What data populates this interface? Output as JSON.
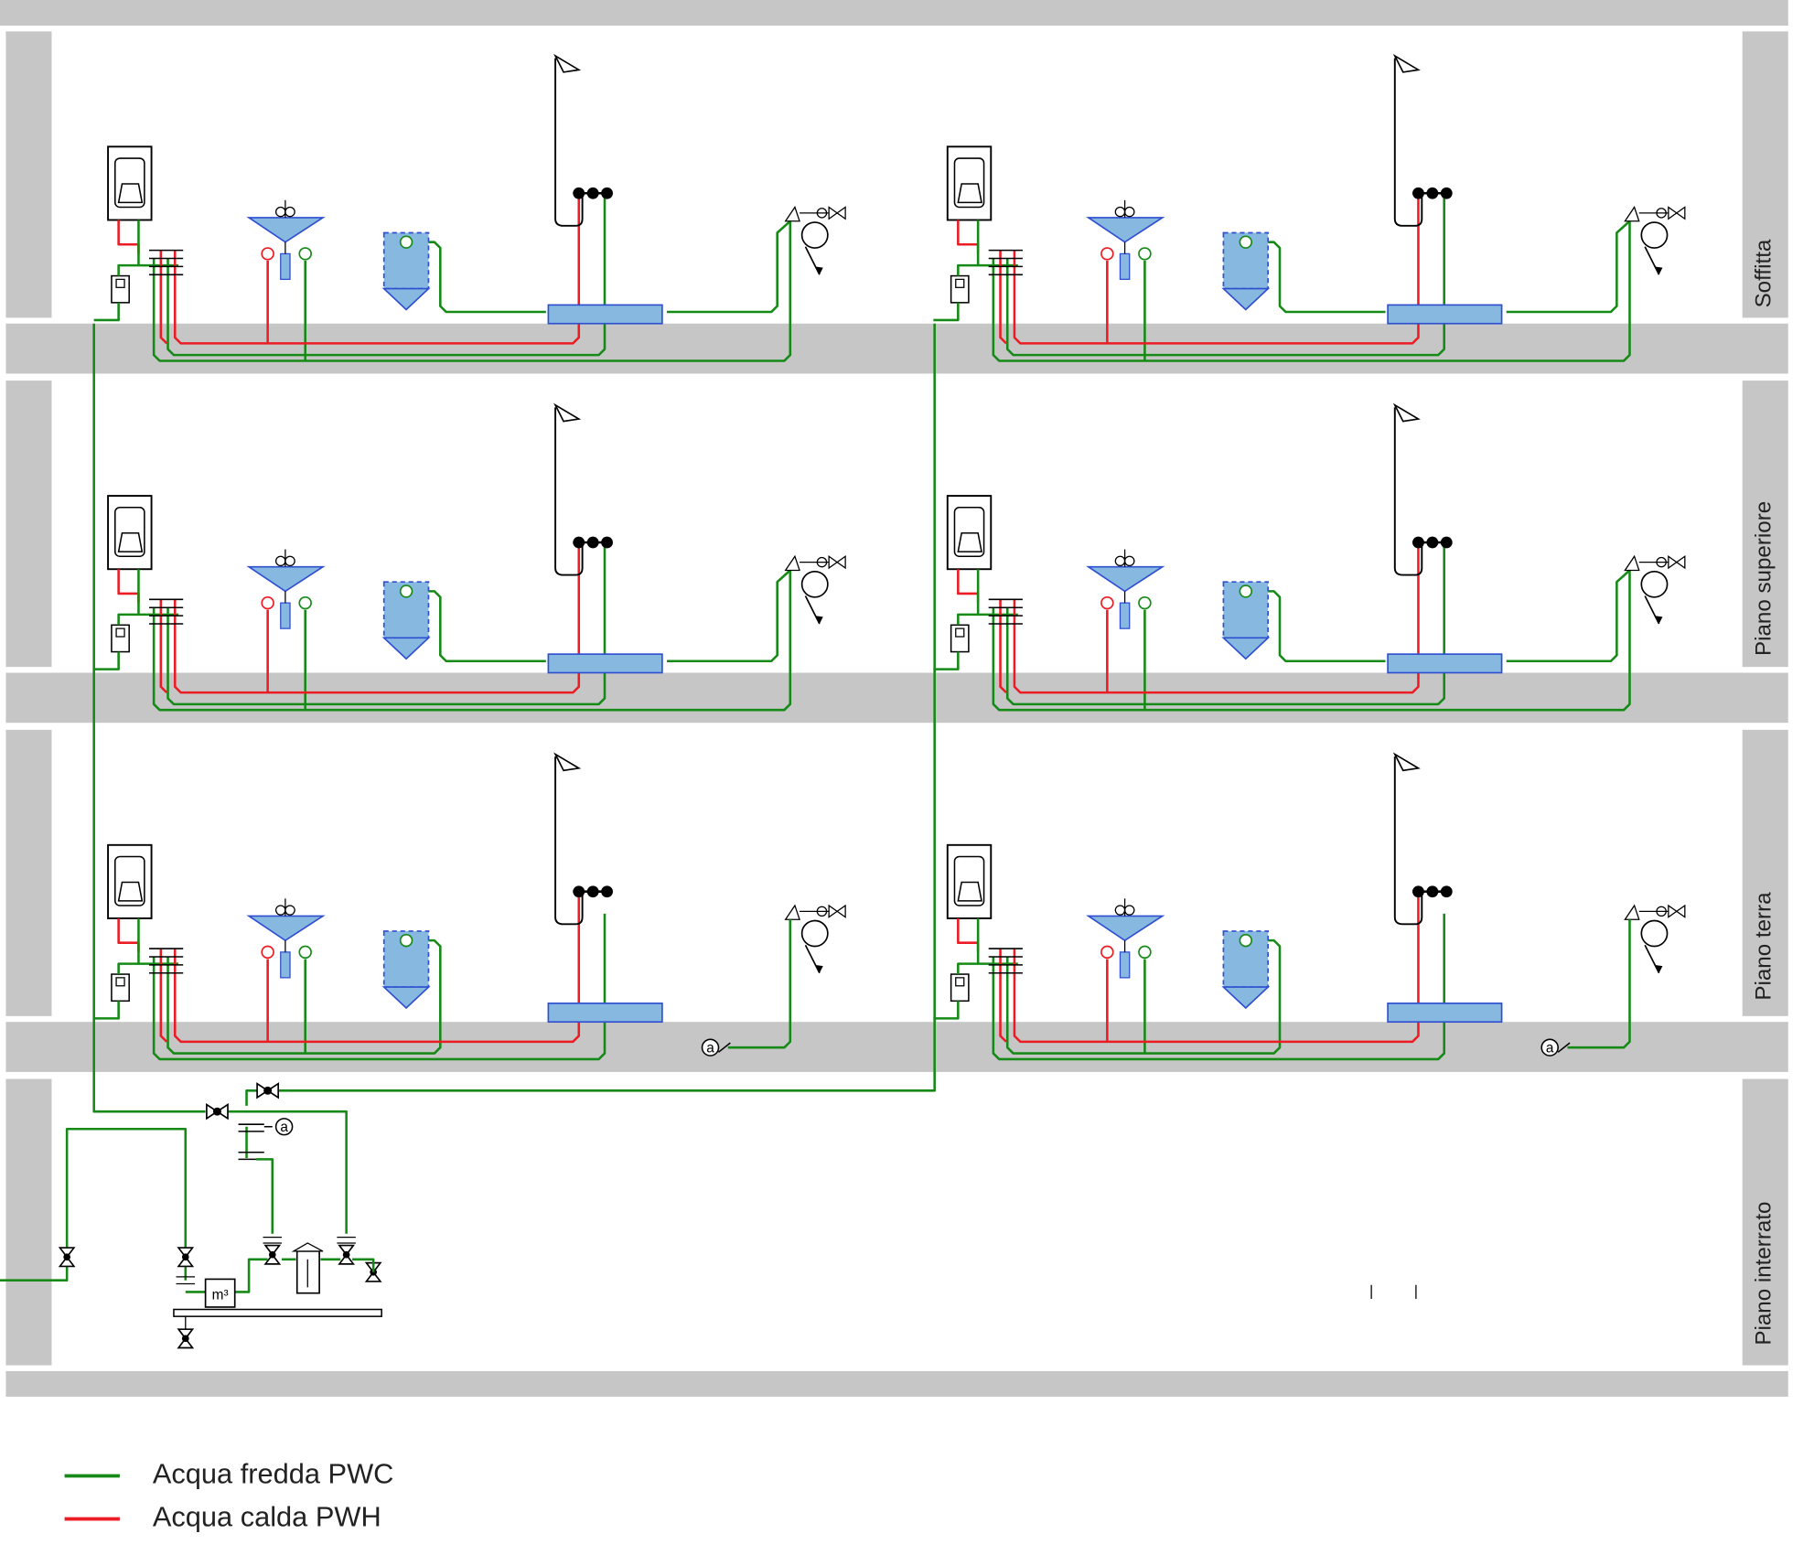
{
  "floors": [
    {
      "label": "Soffitta"
    },
    {
      "label": "Piano superiore"
    },
    {
      "label": "Piano terra"
    },
    {
      "label": "Piano interrato"
    }
  ],
  "legend": [
    {
      "label": "Acqua fredda PWC",
      "color": "#168a16"
    },
    {
      "label": "Acqua calda PWH",
      "color": "#ec1c24"
    }
  ],
  "symbols": {
    "drain": "a",
    "meter": "m³"
  }
}
